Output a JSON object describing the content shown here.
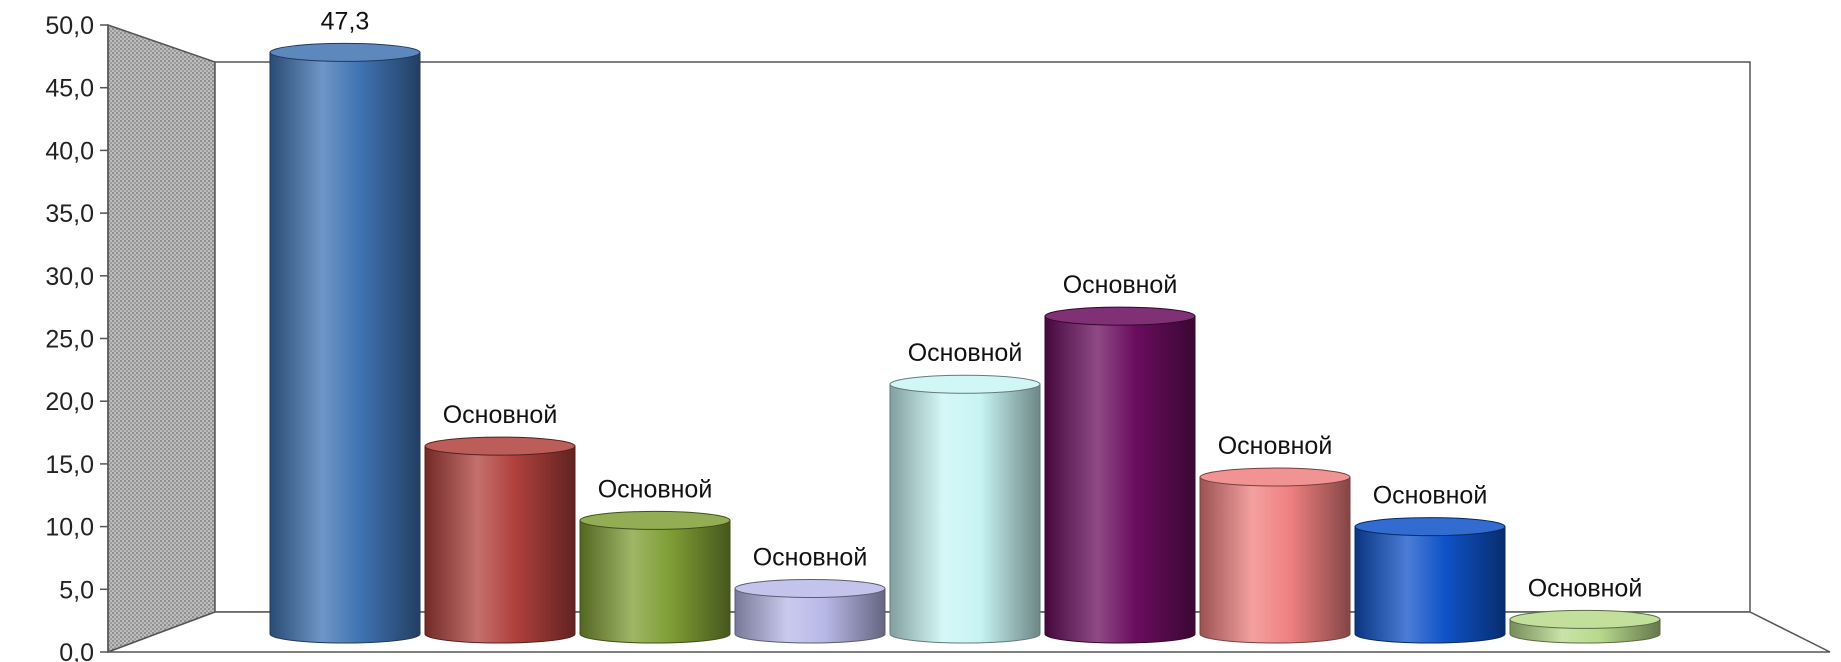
{
  "chart_data": {
    "type": "bar",
    "style": "3d-cylinder",
    "title": "",
    "xlabel": "",
    "ylabel": "",
    "ylim": [
      0,
      50
    ],
    "yticks": [
      "0,0",
      "5,0",
      "10,0",
      "15,0",
      "20,0",
      "25,0",
      "30,0",
      "35,0",
      "40,0",
      "45,0",
      "50,0"
    ],
    "grid": false,
    "legend": "none",
    "values": [
      47.3,
      15.5,
      9.5,
      4.0,
      20.5,
      26.0,
      13.0,
      9.0,
      1.5
    ],
    "data_labels": [
      "47,3",
      "Основной",
      "Основной",
      "Основной",
      "Основной",
      "Основной",
      "Основной",
      "Основной",
      "Основной"
    ],
    "colors": [
      "#3f73b3",
      "#b0403c",
      "#7f9e35",
      "#b8b8e8",
      "#c8f4f4",
      "#6a0d5e",
      "#f08080",
      "#0f52c8",
      "#b7d98b"
    ]
  }
}
